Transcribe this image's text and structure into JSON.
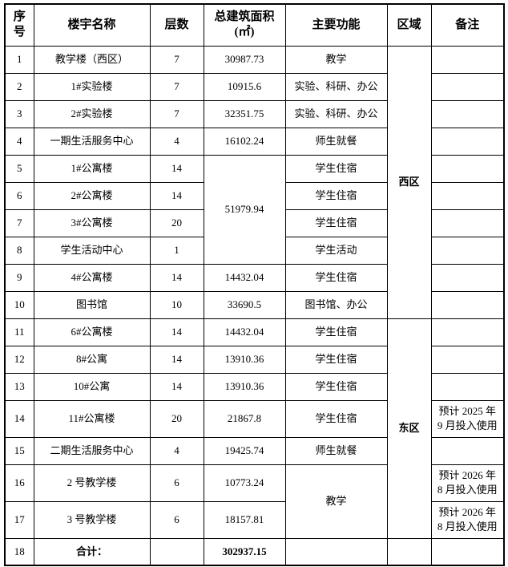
{
  "table": {
    "header": {
      "index": "序号",
      "name": "楼宇名称",
      "floors": "层数",
      "area": "总建筑面积",
      "area_unit": "(㎡)",
      "function": "主要功能",
      "region": "区域",
      "remark": "备注"
    },
    "rows": [
      {
        "cells": [
          {
            "col": "index",
            "v": "1"
          },
          {
            "col": "name",
            "v": "教学楼（西区）"
          },
          {
            "col": "floors",
            "v": "7"
          },
          {
            "col": "area",
            "v": "30987.73"
          },
          {
            "col": "function",
            "v": "教学"
          },
          {
            "col": "region",
            "v": "西区",
            "rowspan": 10,
            "bold": true
          },
          {
            "col": "remark",
            "v": ""
          }
        ]
      },
      {
        "cells": [
          {
            "col": "index",
            "v": "2"
          },
          {
            "col": "name",
            "v": "1#实验楼"
          },
          {
            "col": "floors",
            "v": "7"
          },
          {
            "col": "area",
            "v": "10915.6"
          },
          {
            "col": "function",
            "v": "实验、科研、办公"
          },
          {
            "col": "remark",
            "v": ""
          }
        ]
      },
      {
        "cells": [
          {
            "col": "index",
            "v": "3"
          },
          {
            "col": "name",
            "v": "2#实验楼"
          },
          {
            "col": "floors",
            "v": "7"
          },
          {
            "col": "area",
            "v": "32351.75"
          },
          {
            "col": "function",
            "v": "实验、科研、办公"
          },
          {
            "col": "remark",
            "v": ""
          }
        ]
      },
      {
        "cells": [
          {
            "col": "index",
            "v": "4"
          },
          {
            "col": "name",
            "v": "一期生活服务中心"
          },
          {
            "col": "floors",
            "v": "4"
          },
          {
            "col": "area",
            "v": "16102.24"
          },
          {
            "col": "function",
            "v": "师生就餐"
          },
          {
            "col": "remark",
            "v": ""
          }
        ]
      },
      {
        "cells": [
          {
            "col": "index",
            "v": "5"
          },
          {
            "col": "name",
            "v": "1#公寓楼"
          },
          {
            "col": "floors",
            "v": "14"
          },
          {
            "col": "area",
            "v": "51979.94",
            "rowspan": 4
          },
          {
            "col": "function",
            "v": "学生住宿"
          },
          {
            "col": "remark",
            "v": ""
          }
        ]
      },
      {
        "cells": [
          {
            "col": "index",
            "v": "6"
          },
          {
            "col": "name",
            "v": "2#公寓楼"
          },
          {
            "col": "floors",
            "v": "14"
          },
          {
            "col": "function",
            "v": "学生住宿"
          },
          {
            "col": "remark",
            "v": ""
          }
        ]
      },
      {
        "cells": [
          {
            "col": "index",
            "v": "7"
          },
          {
            "col": "name",
            "v": "3#公寓楼"
          },
          {
            "col": "floors",
            "v": "20"
          },
          {
            "col": "function",
            "v": "学生住宿"
          },
          {
            "col": "remark",
            "v": ""
          }
        ]
      },
      {
        "cells": [
          {
            "col": "index",
            "v": "8"
          },
          {
            "col": "name",
            "v": "学生活动中心"
          },
          {
            "col": "floors",
            "v": "1"
          },
          {
            "col": "function",
            "v": "学生活动"
          },
          {
            "col": "remark",
            "v": ""
          }
        ]
      },
      {
        "cells": [
          {
            "col": "index",
            "v": "9"
          },
          {
            "col": "name",
            "v": "4#公寓楼"
          },
          {
            "col": "floors",
            "v": "14"
          },
          {
            "col": "area",
            "v": "14432.04"
          },
          {
            "col": "function",
            "v": "学生住宿"
          },
          {
            "col": "remark",
            "v": ""
          }
        ]
      },
      {
        "cells": [
          {
            "col": "index",
            "v": "10"
          },
          {
            "col": "name",
            "v": "图书馆"
          },
          {
            "col": "floors",
            "v": "10"
          },
          {
            "col": "area",
            "v": "33690.5"
          },
          {
            "col": "function",
            "v": "图书馆、办公"
          },
          {
            "col": "remark",
            "v": ""
          }
        ]
      },
      {
        "cells": [
          {
            "col": "index",
            "v": "11"
          },
          {
            "col": "name",
            "v": "6#公寓楼"
          },
          {
            "col": "floors",
            "v": "14"
          },
          {
            "col": "area",
            "v": "14432.04"
          },
          {
            "col": "function",
            "v": "学生住宿"
          },
          {
            "col": "region",
            "v": "东区",
            "rowspan": 7,
            "bold": true
          },
          {
            "col": "remark",
            "v": ""
          }
        ]
      },
      {
        "cells": [
          {
            "col": "index",
            "v": "12"
          },
          {
            "col": "name",
            "v": "8#公寓"
          },
          {
            "col": "floors",
            "v": "14"
          },
          {
            "col": "area",
            "v": "13910.36"
          },
          {
            "col": "function",
            "v": "学生住宿"
          },
          {
            "col": "remark",
            "v": ""
          }
        ]
      },
      {
        "cells": [
          {
            "col": "index",
            "v": "13"
          },
          {
            "col": "name",
            "v": "10#公寓"
          },
          {
            "col": "floors",
            "v": "14"
          },
          {
            "col": "area",
            "v": "13910.36"
          },
          {
            "col": "function",
            "v": "学生住宿"
          },
          {
            "col": "remark",
            "v": ""
          }
        ]
      },
      {
        "cells": [
          {
            "col": "index",
            "v": "14"
          },
          {
            "col": "name",
            "v": "11#公寓楼"
          },
          {
            "col": "floors",
            "v": "20"
          },
          {
            "col": "area",
            "v": "21867.8"
          },
          {
            "col": "function",
            "v": "学生住宿"
          },
          {
            "col": "remark",
            "lines": [
              "预计 2025 年",
              "9 月投入使用"
            ]
          }
        ]
      },
      {
        "cells": [
          {
            "col": "index",
            "v": "15"
          },
          {
            "col": "name",
            "v": "二期生活服务中心"
          },
          {
            "col": "floors",
            "v": "4"
          },
          {
            "col": "area",
            "v": "19425.74"
          },
          {
            "col": "function",
            "v": "师生就餐"
          },
          {
            "col": "remark",
            "v": ""
          }
        ]
      },
      {
        "cells": [
          {
            "col": "index",
            "v": "16"
          },
          {
            "col": "name",
            "v": "2 号教学楼"
          },
          {
            "col": "floors",
            "v": "6"
          },
          {
            "col": "area",
            "v": "10773.24"
          },
          {
            "col": "function",
            "v": "教学",
            "rowspan": 2
          },
          {
            "col": "remark",
            "lines": [
              "预计 2026 年",
              "8 月投入使用"
            ]
          }
        ]
      },
      {
        "cells": [
          {
            "col": "index",
            "v": "17"
          },
          {
            "col": "name",
            "v": "3 号教学楼"
          },
          {
            "col": "floors",
            "v": "6"
          },
          {
            "col": "area",
            "v": "18157.81"
          },
          {
            "col": "remark",
            "lines": [
              "预计 2026 年",
              "8 月投入使用"
            ]
          }
        ]
      },
      {
        "cells": [
          {
            "col": "index",
            "v": "18"
          },
          {
            "col": "name",
            "v": "合计：",
            "bold": true
          },
          {
            "col": "floors",
            "v": ""
          },
          {
            "col": "area",
            "v": "302937.15",
            "bold": true
          },
          {
            "col": "function",
            "v": ""
          },
          {
            "col": "region",
            "v": ""
          },
          {
            "col": "remark",
            "v": ""
          }
        ]
      }
    ]
  }
}
